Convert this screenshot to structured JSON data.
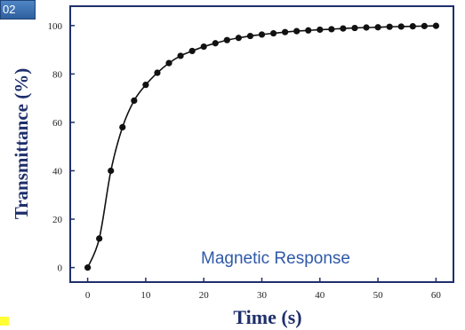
{
  "badge": {
    "text": "02"
  },
  "chart_data": {
    "type": "line",
    "title": "",
    "xlabel": "Time (s)",
    "ylabel": "Transmittance (%)",
    "xlim": [
      -3,
      63
    ],
    "ylim": [
      -6,
      108
    ],
    "xticks": [
      0,
      10,
      20,
      30,
      40,
      50,
      60
    ],
    "yticks": [
      0,
      20,
      40,
      60,
      80,
      100
    ],
    "grid": false,
    "legend": "none",
    "annotation": "Magnetic Response",
    "series": [
      {
        "marker": "circle",
        "color": "#111111",
        "x": [
          0,
          2,
          4,
          6,
          8,
          10,
          12,
          14,
          16,
          18,
          20,
          22,
          24,
          26,
          28,
          30,
          32,
          34,
          36,
          38,
          40,
          42,
          44,
          46,
          48,
          50,
          52,
          54,
          56,
          58,
          60
        ],
        "y": [
          0,
          12,
          40,
          58,
          69,
          75.5,
          80.5,
          84.5,
          87.5,
          89.5,
          91.3,
          92.7,
          94,
          94.9,
          95.7,
          96.3,
          96.8,
          97.3,
          97.7,
          98,
          98.3,
          98.5,
          98.8,
          99,
          99.2,
          99.3,
          99.5,
          99.6,
          99.7,
          99.8,
          99.9
        ]
      }
    ]
  }
}
